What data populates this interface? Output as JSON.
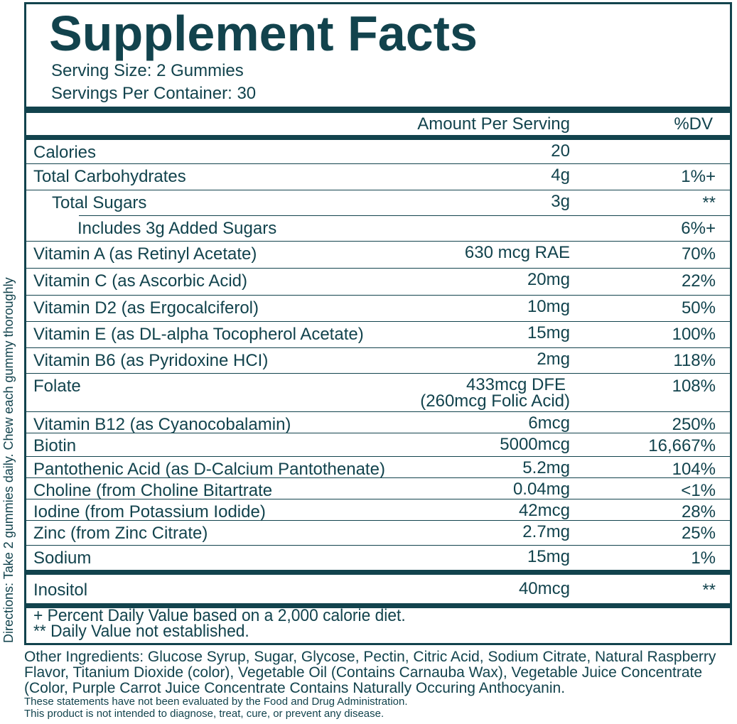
{
  "title": "Supplement Facts",
  "serving_size": "Serving Size: 2 Gummies",
  "servings_per_container": "Servings Per Container: 30",
  "header": {
    "amount": "Amount Per Serving",
    "dv": "%DV"
  },
  "rows": [
    {
      "label": "Calories",
      "amount": "20",
      "dv": ""
    },
    {
      "label": "Total Carbohydrates",
      "amount": "4g",
      "dv": "1%+"
    },
    {
      "label": "Total Sugars",
      "amount": "3g",
      "dv": "**"
    },
    {
      "label": "Includes 3g Added Sugars",
      "amount": "",
      "dv": "6%+"
    },
    {
      "label": "Vitamin A (as Retinyl Acetate)",
      "amount": "630 mcg RAE",
      "dv": "70%"
    },
    {
      "label": "Vitamin C (as Ascorbic Acid)",
      "amount": "20mg",
      "dv": "22%"
    },
    {
      "label": "Vitamin D2 (as Ergocalciferol)",
      "amount": "10mg",
      "dv": "50%"
    },
    {
      "label": "Vitamin E (as DL-alpha Tocopherol Acetate)",
      "amount": "15mg",
      "dv": "100%"
    },
    {
      "label": "Vitamin B6 (as Pyridoxine HCI)",
      "amount": "2mg",
      "dv": "118%"
    },
    {
      "label": "Folate",
      "amount": "433mcg DFE",
      "amount2": "(260mcg Folic Acid)",
      "dv": "108%"
    },
    {
      "label": "Vitamin B12 (as Cyanocobalamin)",
      "amount": "6mcg",
      "dv": "250%"
    },
    {
      "label": "Biotin",
      "amount": "5000mcg",
      "dv": "16,667%"
    },
    {
      "label": "Pantothenic Acid (as D-Calcium Pantothenate)",
      "amount": "5.2mg",
      "dv": "104%"
    },
    {
      "label": "Choline (from Choline Bitartrate",
      "amount": "0.04mg",
      "dv": "<1%"
    },
    {
      "label": "Iodine (from Potassium Iodide)",
      "amount": "42mcg",
      "dv": "28%"
    },
    {
      "label": "Zinc (from Zinc Citrate)",
      "amount": "2.7mg",
      "dv": "25%"
    },
    {
      "label": "Sodium",
      "amount": "15mg",
      "dv": "1%"
    },
    {
      "label": "Inositol",
      "amount": "40mcg",
      "dv": "**"
    }
  ],
  "footnotes": [
    "+ Percent Daily Value based on a 2,000 calorie diet.",
    "** Daily Value not established."
  ],
  "directions": "Directions: Take 2 gummies daily. Chew each gummy thoroughly",
  "other_ingredients": "Other Ingredients: Glucose Syrup, Sugar, Glycose, Pectin, Citric Acid, Sodium Citrate, Natural Raspberry Flavor, Titanium Dioxide (color), Vegetable Oil (Contains Carnauba Wax), Vegetable Juice Concentrate (Color, Purple Carrot Juice Concentrate Contains Naturally Occuring Anthocyanin.",
  "disclaimer": [
    "These statements have not been evaluated by the Food and Drug Administration.",
    "This product is not intended to diagnose, treat, cure, or prevent any disease."
  ],
  "colors": {
    "ink": "#12434d",
    "background": "#ffffff"
  }
}
